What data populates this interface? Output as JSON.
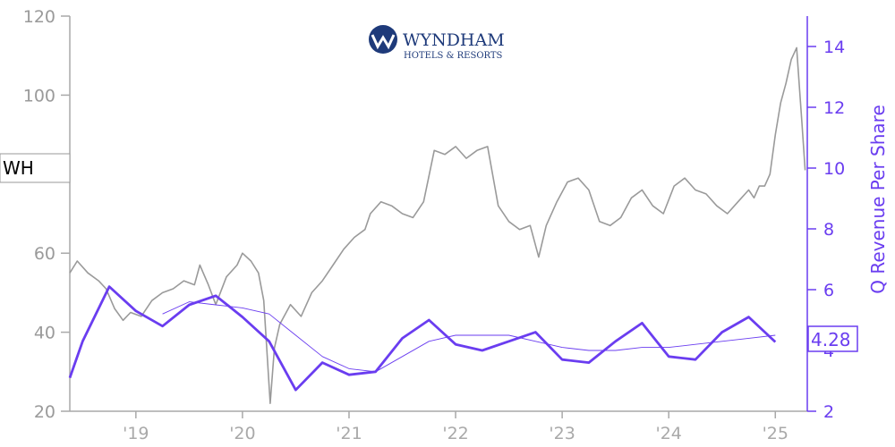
{
  "logo": {
    "name": "WYNDHAM",
    "sub": "HOTELS & RESORTS"
  },
  "ticker": "WH",
  "last_value_label": "4.28",
  "chart_data": {
    "type": "line",
    "title": "",
    "xlabel": "",
    "ylabel_left": "",
    "ylabel_right": "Q Revenue Per Share",
    "left_axis": {
      "ticks": [
        20,
        40,
        60,
        100,
        120
      ],
      "range": [
        20,
        120
      ]
    },
    "right_axis": {
      "ticks": [
        2,
        4,
        6,
        8,
        10,
        12,
        14
      ],
      "range": [
        2,
        15
      ]
    },
    "x_axis": {
      "range": [
        2018.38,
        2025.3
      ],
      "ticks": [
        2019,
        2020,
        2021,
        2022,
        2023,
        2024,
        2025
      ],
      "tick_labels": [
        "'19",
        "'20",
        "'21",
        "'22",
        "'23",
        "'24",
        "'25"
      ]
    },
    "series": [
      {
        "name": "",
        "axis": "left",
        "color": "#9a9a9a",
        "x": [
          2018.38,
          2018.45,
          2018.55,
          2018.65,
          2018.72,
          2018.8,
          2018.88,
          2018.95,
          2019.05,
          2019.15,
          2019.25,
          2019.35,
          2019.45,
          2019.55,
          2019.6,
          2019.68,
          2019.75,
          2019.85,
          2019.95,
          2020.0,
          2020.08,
          2020.15,
          2020.2,
          2020.23,
          2020.26,
          2020.3,
          2020.35,
          2020.45,
          2020.55,
          2020.65,
          2020.75,
          2020.85,
          2020.95,
          2021.05,
          2021.15,
          2021.2,
          2021.3,
          2021.4,
          2021.5,
          2021.6,
          2021.7,
          2021.8,
          2021.9,
          2022.0,
          2022.1,
          2022.2,
          2022.3,
          2022.4,
          2022.5,
          2022.6,
          2022.7,
          2022.78,
          2022.85,
          2022.95,
          2023.05,
          2023.15,
          2023.25,
          2023.35,
          2023.45,
          2023.55,
          2023.65,
          2023.75,
          2023.85,
          2023.95,
          2024.05,
          2024.15,
          2024.25,
          2024.35,
          2024.45,
          2024.55,
          2024.65,
          2024.75,
          2024.8,
          2024.85,
          2024.9,
          2024.95,
          2025.0,
          2025.05,
          2025.1,
          2025.15,
          2025.2,
          2025.25,
          2025.28
        ],
        "values": [
          55,
          58,
          55,
          53,
          51,
          46,
          43,
          45,
          44,
          48,
          50,
          51,
          53,
          52,
          57,
          52,
          47,
          54,
          57,
          60,
          58,
          55,
          48,
          35,
          22,
          36,
          42,
          47,
          44,
          50,
          53,
          57,
          61,
          64,
          66,
          70,
          73,
          72,
          70,
          69,
          73,
          86,
          85,
          87,
          84,
          86,
          87,
          72,
          68,
          66,
          67,
          59,
          67,
          73,
          78,
          79,
          76,
          68,
          67,
          69,
          74,
          76,
          72,
          70,
          77,
          79,
          76,
          75,
          72,
          70,
          73,
          76,
          74,
          77,
          77,
          80,
          90,
          98,
          103,
          109,
          112,
          93,
          81
        ]
      },
      {
        "name": "",
        "axis": "right",
        "color": "#6a3df0",
        "x": [
          2018.38,
          2018.5,
          2018.75,
          2019.0,
          2019.25,
          2019.5,
          2019.75,
          2020.0,
          2020.25,
          2020.5,
          2020.75,
          2021.0,
          2021.25,
          2021.5,
          2021.75,
          2022.0,
          2022.25,
          2022.5,
          2022.75,
          2023.0,
          2023.25,
          2023.5,
          2023.75,
          2024.0,
          2024.25,
          2024.5,
          2024.75,
          2025.0
        ],
        "values": [
          3.1,
          4.3,
          6.1,
          5.3,
          4.8,
          5.5,
          5.8,
          5.1,
          4.3,
          2.7,
          3.6,
          3.2,
          3.3,
          4.4,
          5.0,
          4.2,
          4.0,
          4.3,
          4.6,
          3.7,
          3.6,
          4.3,
          4.9,
          3.8,
          3.7,
          4.6,
          5.1,
          4.28
        ]
      },
      {
        "name": "",
        "axis": "right",
        "color": "#6a3df0",
        "x": [
          2019.25,
          2019.5,
          2019.75,
          2020.0,
          2020.25,
          2020.5,
          2020.75,
          2021.0,
          2021.25,
          2021.5,
          2021.75,
          2022.0,
          2022.25,
          2022.5,
          2022.75,
          2023.0,
          2023.25,
          2023.5,
          2023.75,
          2024.0,
          2024.25,
          2024.5,
          2024.75,
          2025.0
        ],
        "values": [
          5.2,
          5.6,
          5.5,
          5.4,
          5.2,
          4.5,
          3.8,
          3.4,
          3.3,
          3.8,
          4.3,
          4.5,
          4.5,
          4.5,
          4.3,
          4.1,
          4.0,
          4.0,
          4.1,
          4.1,
          4.2,
          4.3,
          4.4,
          4.5
        ]
      }
    ]
  }
}
